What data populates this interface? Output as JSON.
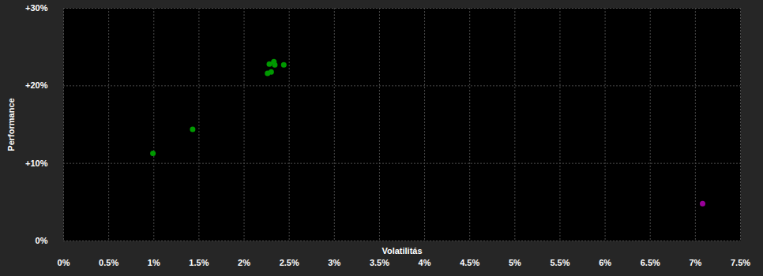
{
  "chart_data": {
    "type": "scatter",
    "x_label": "Volatilitás",
    "y_label": "Performance",
    "x": [
      0.99,
      1.43,
      2.26,
      2.3,
      2.28,
      2.33,
      2.34,
      2.44,
      7.08
    ],
    "values": [
      11.3,
      14.4,
      21.6,
      21.8,
      22.8,
      23.1,
      22.7,
      22.7,
      4.8
    ],
    "colors": [
      "#009900",
      "#009900",
      "#009900",
      "#009900",
      "#009900",
      "#009900",
      "#009900",
      "#009900",
      "#990099"
    ],
    "xlim": [
      0,
      7.5
    ],
    "ylim": [
      0,
      30
    ],
    "xticks": [
      {
        "value": 0,
        "label": "0%"
      },
      {
        "value": 0.5,
        "label": "0.5%"
      },
      {
        "value": 1,
        "label": "1%"
      },
      {
        "value": 1.5,
        "label": "1.5%"
      },
      {
        "value": 2,
        "label": "2%"
      },
      {
        "value": 2.5,
        "label": "2.5%"
      },
      {
        "value": 3,
        "label": "3%"
      },
      {
        "value": 3.5,
        "label": "3.5%"
      },
      {
        "value": 4,
        "label": "4%"
      },
      {
        "value": 4.5,
        "label": "4.5%"
      },
      {
        "value": 5,
        "label": "5%"
      },
      {
        "value": 5.5,
        "label": "5.5%"
      },
      {
        "value": 6,
        "label": "6%"
      },
      {
        "value": 6.5,
        "label": "6.5%"
      },
      {
        "value": 7,
        "label": "7%"
      },
      {
        "value": 7.5,
        "label": "7.5%"
      }
    ],
    "yticks": [
      {
        "value": 0,
        "label": "0%"
      },
      {
        "value": 10,
        "label": "+10%"
      },
      {
        "value": 20,
        "label": "+20%"
      },
      {
        "value": 30,
        "label": "+30%"
      }
    ],
    "grid": true,
    "marker": "circle"
  }
}
